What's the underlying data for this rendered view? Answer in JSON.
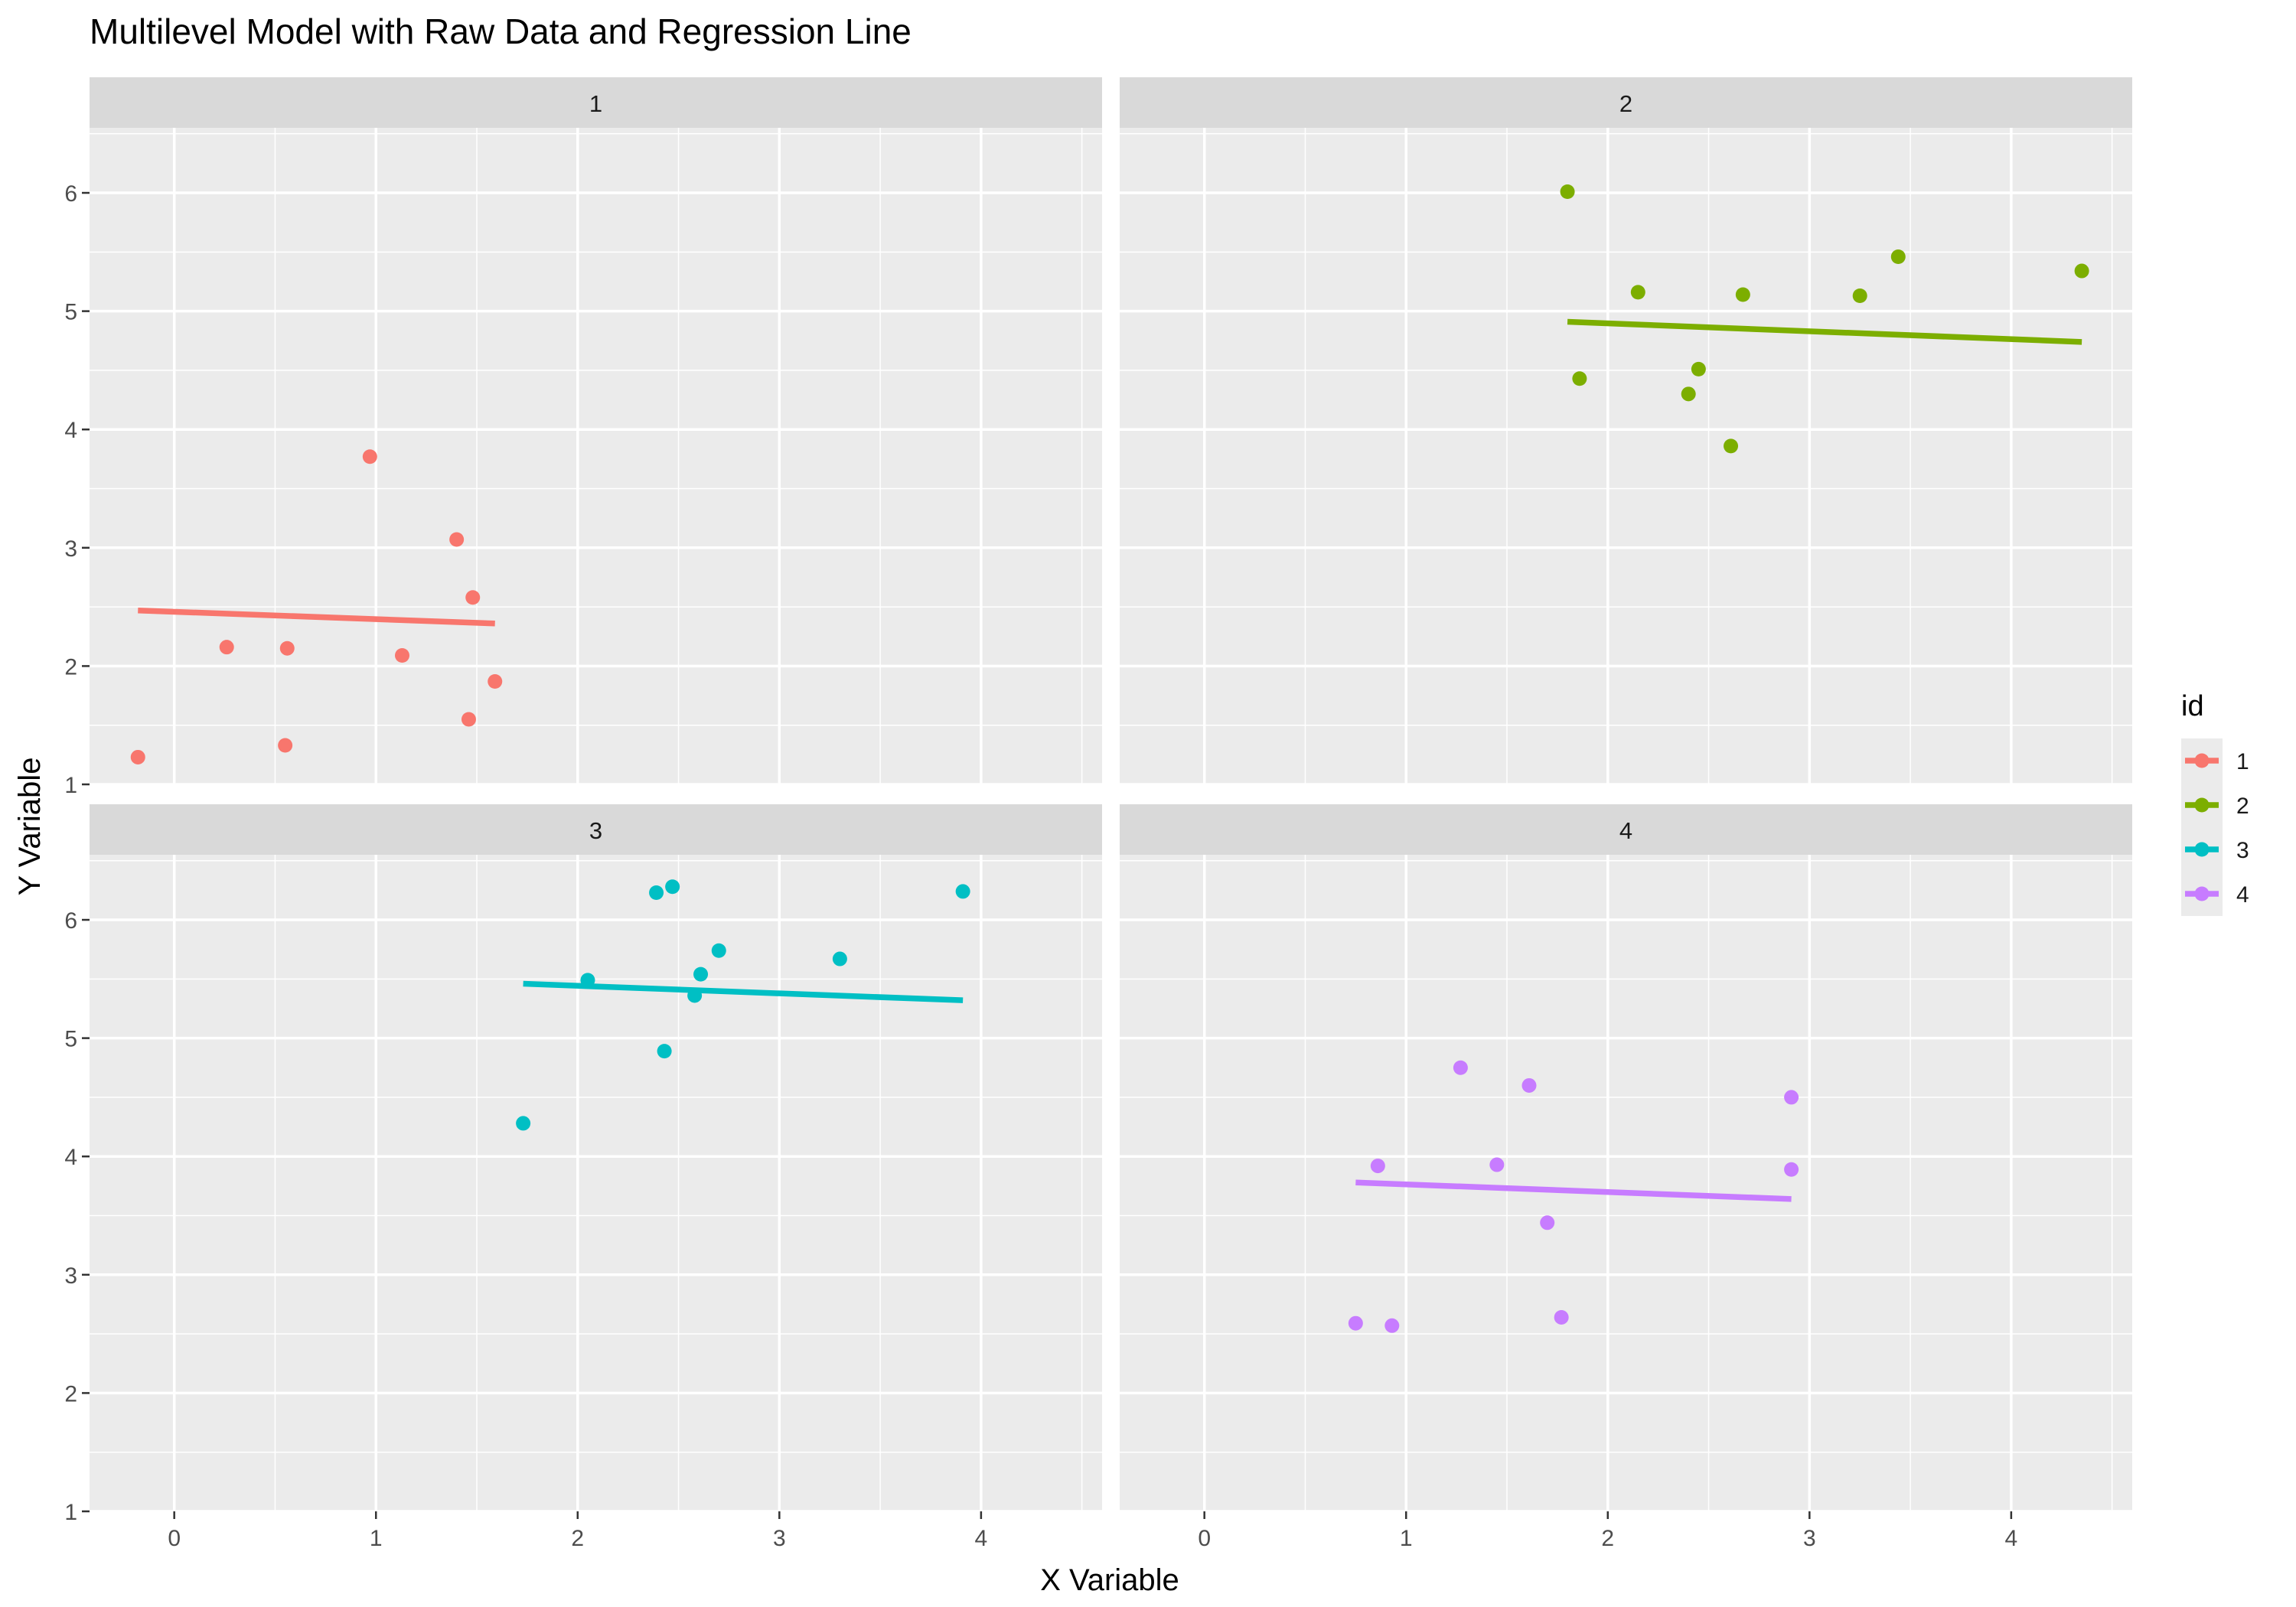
{
  "chart_data": {
    "type": "scatter",
    "title": "Multilevel Model with Raw Data and Regression Line",
    "xlabel": "X Variable",
    "ylabel": "Y Variable",
    "xlim": [
      -0.42,
      4.6
    ],
    "ylim": [
      1.0,
      6.55
    ],
    "x_ticks": [
      "0",
      "1",
      "2",
      "3",
      "4"
    ],
    "y_ticks": [
      "1",
      "2",
      "3",
      "4",
      "5",
      "6"
    ],
    "grid": true,
    "legend": {
      "title": "id",
      "placement": "right",
      "entries": [
        "1",
        "2",
        "3",
        "4"
      ]
    },
    "facets": [
      {
        "label": "1",
        "color": "#F8766D",
        "points": [
          [
            -0.18,
            1.23
          ],
          [
            0.26,
            2.16
          ],
          [
            0.56,
            2.15
          ],
          [
            0.55,
            1.33
          ],
          [
            0.97,
            3.77
          ],
          [
            1.13,
            2.09
          ],
          [
            1.4,
            3.07
          ],
          [
            1.48,
            2.58
          ],
          [
            1.46,
            1.55
          ],
          [
            1.59,
            1.87
          ]
        ],
        "regression": [
          [
            -0.18,
            2.47
          ],
          [
            1.59,
            2.36
          ]
        ]
      },
      {
        "label": "2",
        "color": "#7CAE00",
        "points": [
          [
            1.8,
            6.01
          ],
          [
            1.86,
            4.43
          ],
          [
            2.15,
            5.16
          ],
          [
            2.4,
            4.3
          ],
          [
            2.45,
            4.51
          ],
          [
            2.61,
            3.86
          ],
          [
            2.67,
            5.14
          ],
          [
            3.25,
            5.13
          ],
          [
            3.44,
            5.46
          ],
          [
            4.35,
            5.34
          ]
        ],
        "regression": [
          [
            1.8,
            4.91
          ],
          [
            4.35,
            4.74
          ]
        ]
      },
      {
        "label": "3",
        "color": "#00BFC4",
        "points": [
          [
            1.73,
            4.28
          ],
          [
            2.05,
            5.49
          ],
          [
            2.39,
            6.23
          ],
          [
            2.43,
            4.89
          ],
          [
            2.47,
            6.28
          ],
          [
            2.58,
            5.36
          ],
          [
            2.61,
            5.54
          ],
          [
            2.7,
            5.74
          ],
          [
            3.3,
            5.67
          ],
          [
            3.91,
            6.24
          ]
        ],
        "regression": [
          [
            1.73,
            5.46
          ],
          [
            3.91,
            5.32
          ]
        ]
      },
      {
        "label": "4",
        "color": "#C77CFF",
        "points": [
          [
            0.75,
            2.59
          ],
          [
            0.86,
            3.92
          ],
          [
            0.93,
            2.57
          ],
          [
            1.27,
            4.75
          ],
          [
            1.45,
            3.93
          ],
          [
            1.61,
            4.6
          ],
          [
            1.7,
            3.44
          ],
          [
            1.77,
            2.64
          ],
          [
            2.91,
            4.5
          ],
          [
            2.91,
            3.89
          ]
        ],
        "regression": [
          [
            0.75,
            3.78
          ],
          [
            2.91,
            3.64
          ]
        ]
      }
    ]
  }
}
